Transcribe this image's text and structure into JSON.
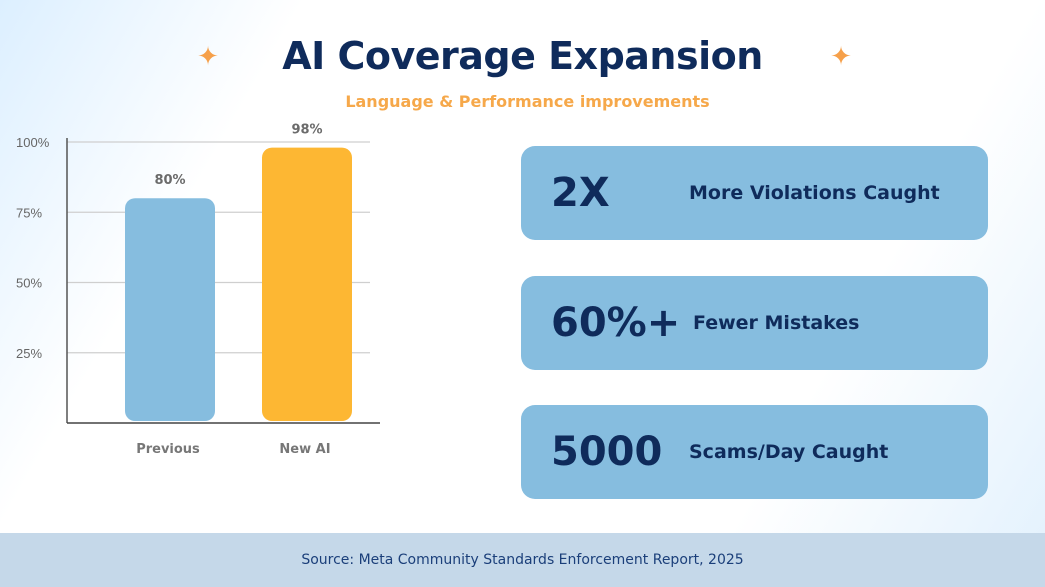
{
  "title": "AI Coverage Expansion",
  "subtitle": "Language & Performance improvements",
  "decor": {
    "star_icon": "four-point-sparkle",
    "star_color": "#f6a04a"
  },
  "chart_data": {
    "type": "bar",
    "categories": [
      "Previous",
      "New AI"
    ],
    "values": [
      80,
      98
    ],
    "data_labels": [
      "80%",
      "98%"
    ],
    "colors": [
      "#86bddf",
      "#fdb733"
    ],
    "ylim": [
      0,
      100
    ],
    "yticks": [
      25,
      50,
      75,
      100
    ],
    "ytick_labels": [
      "25%",
      "50%",
      "75%",
      "100%"
    ],
    "grid": true,
    "xlabel": "",
    "ylabel": ""
  },
  "stats": [
    {
      "value": "2X",
      "label": "More Violations Caught"
    },
    {
      "value": "60%+",
      "label": "Fewer Mistakes"
    },
    {
      "value": "5000",
      "label": "Scams/Day Caught"
    }
  ],
  "footer": {
    "source": "Source: Meta Community Standards Enforcement Report, 2025"
  }
}
